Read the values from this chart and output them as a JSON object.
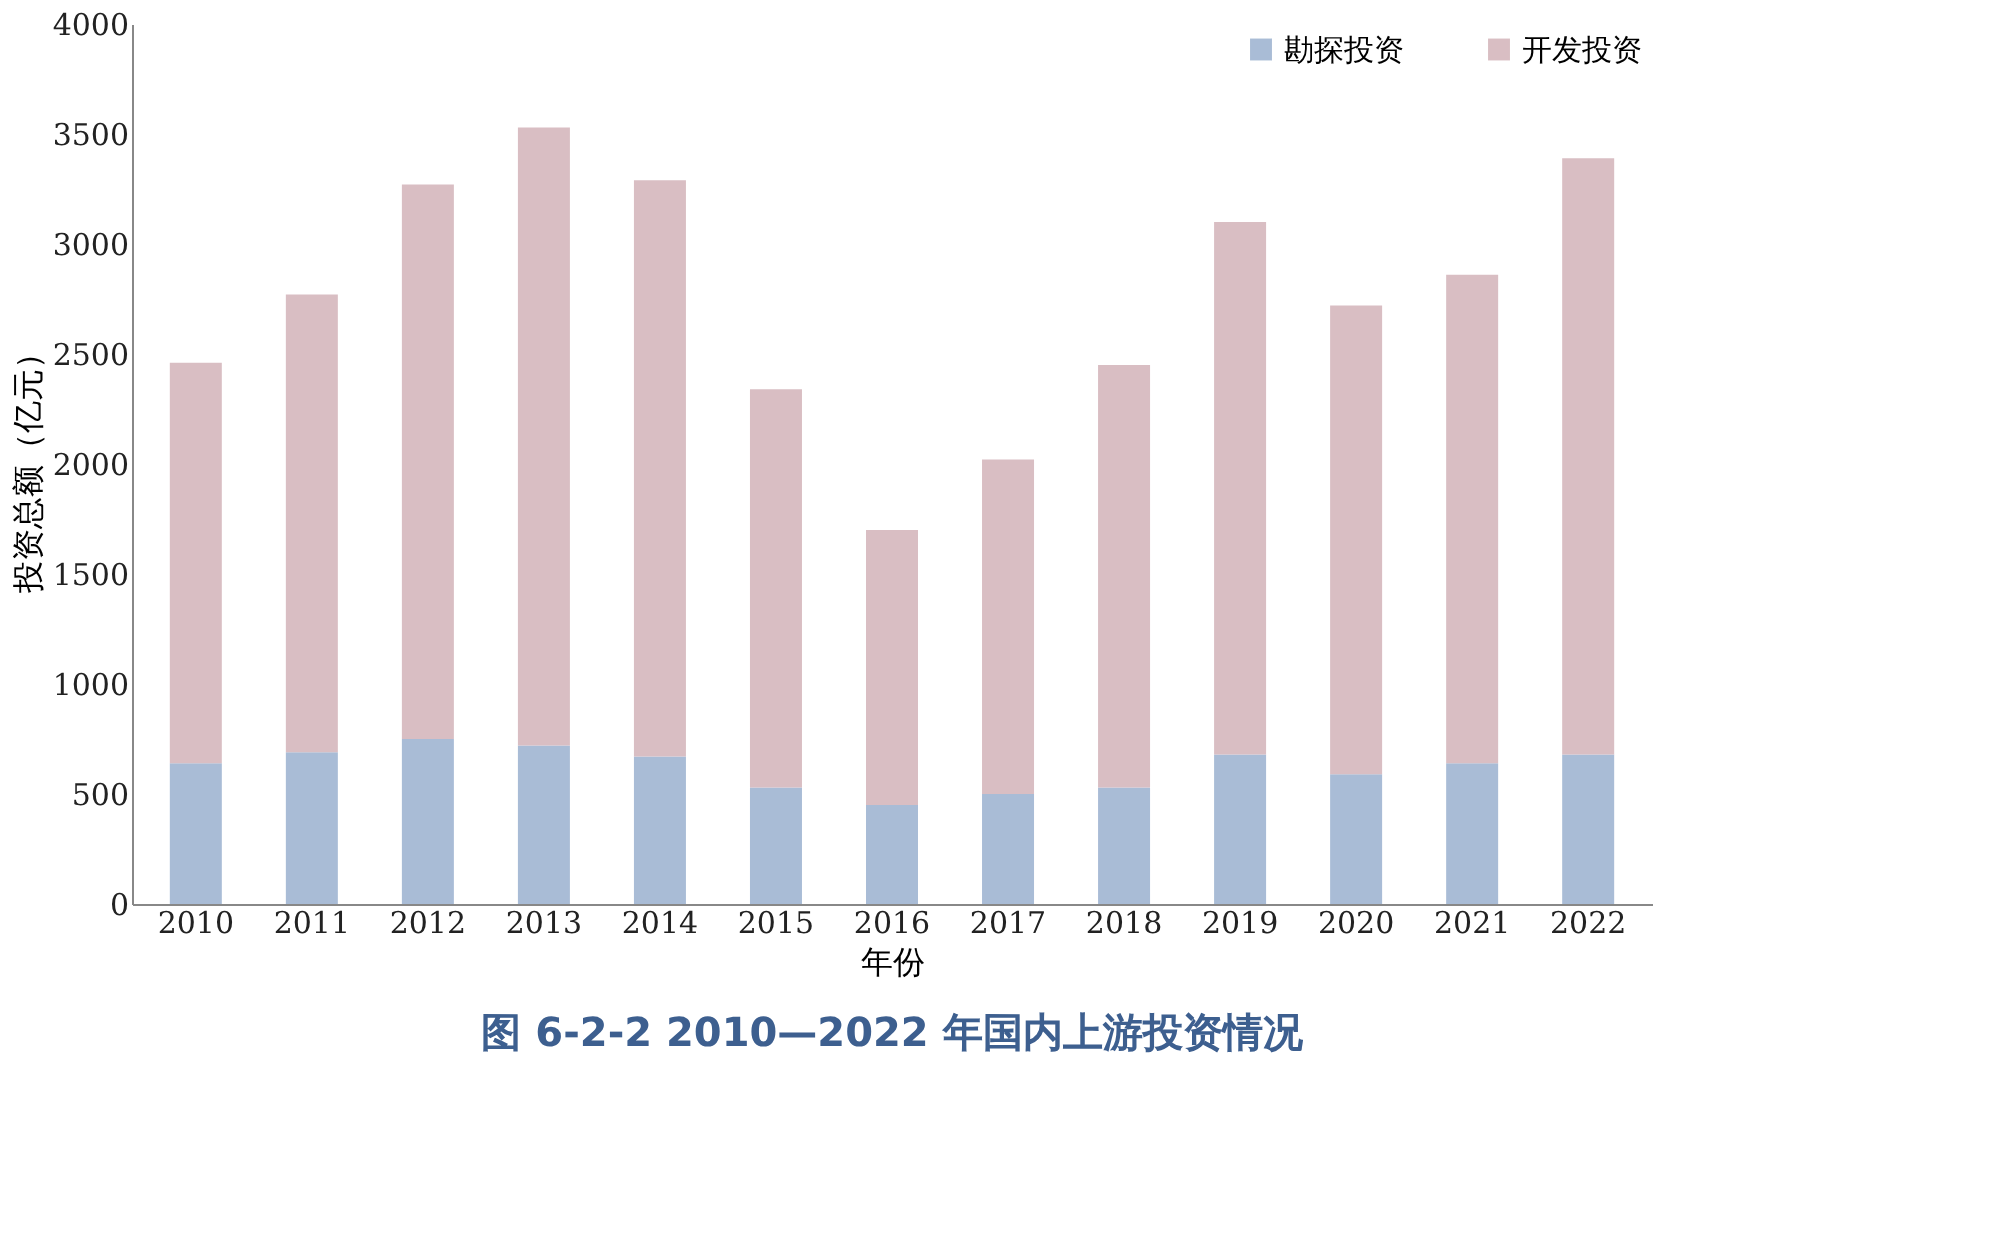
{
  "chart_data": {
    "type": "bar",
    "stacked": true,
    "title": "图 6-2-2   2010—2022 年国内上游投资情况",
    "xlabel": "年份",
    "ylabel": "投资总额（亿元）",
    "categories": [
      "2010",
      "2011",
      "2012",
      "2013",
      "2014",
      "2015",
      "2016",
      "2017",
      "2018",
      "2019",
      "2020",
      "2021",
      "2022"
    ],
    "series": [
      {
        "name": "勘探投资",
        "color": "#a9bcd6",
        "values": [
          640,
          690,
          750,
          720,
          670,
          530,
          450,
          500,
          530,
          680,
          590,
          640,
          680
        ]
      },
      {
        "name": "开发投资",
        "color": "#d9bec3",
        "values": [
          1820,
          2080,
          2520,
          2810,
          2620,
          1810,
          1250,
          1520,
          1920,
          2420,
          2130,
          2220,
          2710
        ]
      }
    ],
    "ylim": [
      0,
      4000
    ],
    "yticks": [
      0,
      500,
      1000,
      1500,
      2000,
      2500,
      3000,
      3500,
      4000
    ],
    "grid": false,
    "legend": "top right"
  }
}
